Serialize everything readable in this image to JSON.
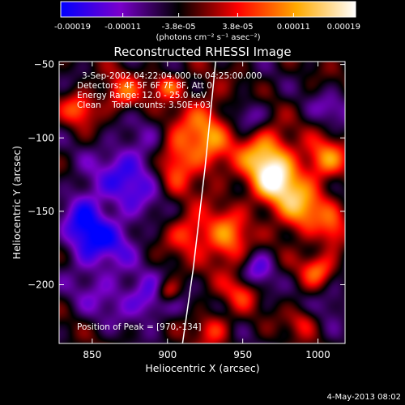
{
  "chart_data": {
    "type": "heatmap",
    "title": "Reconstructed RHESSI Image",
    "xlabel": "Heliocentric X (arcsec)",
    "ylabel": "Heliocentric Y (arcsec)",
    "xlim": [
      828,
      1018
    ],
    "ylim": [
      -240,
      -48
    ],
    "x_ticks": [
      850,
      900,
      950,
      1000
    ],
    "y_ticks": [
      -50,
      -100,
      -150,
      -200
    ],
    "colorbar": {
      "range": [
        -0.00019,
        0.00019
      ],
      "ticks": [
        "-0.00019",
        "-0.00011",
        "-3.8e-05",
        "3.8e-05",
        "0.00011",
        "0.00019"
      ],
      "units": "(photons cm⁻² s⁻¹ asec⁻²)",
      "colormap": [
        "#0000ff",
        "#7a00cc",
        "#000000",
        "#ff0000",
        "#ffaa00",
        "#ffffff"
      ]
    },
    "annotations": {
      "time_range": "3-Sep-2002 04:22:04.000 to 04:25:00.000",
      "detectors": "Detectors: 4F 5F 6F 7F 8F, Att 0",
      "energy_range": "Energy Range: 12.0 - 25.0 keV",
      "method_counts": "Clean    Total counts: 3.50E+03",
      "peak": "Position of Peak = [970,-134]"
    },
    "limb_curve": [
      [
        932,
        -48
      ],
      [
        925,
        -120
      ],
      [
        917,
        -190
      ],
      [
        910,
        -240
      ]
    ],
    "sources": [
      {
        "x": 842,
        "y": -80,
        "value": 0.00011,
        "sx": 8,
        "sy": 8
      },
      {
        "x": 870,
        "y": -70,
        "value": 0.00011,
        "sx": 9,
        "sy": 9
      },
      {
        "x": 900,
        "y": -65,
        "value": 0.00012,
        "sx": 7,
        "sy": 6
      },
      {
        "x": 925,
        "y": -100,
        "value": 0.00013,
        "sx": 12,
        "sy": 20
      },
      {
        "x": 905,
        "y": -115,
        "value": 0.00011,
        "sx": 8,
        "sy": 14
      },
      {
        "x": 965,
        "y": -110,
        "value": 0.00015,
        "sx": 12,
        "sy": 12
      },
      {
        "x": 972,
        "y": -130,
        "value": 0.00019,
        "sx": 12,
        "sy": 12
      },
      {
        "x": 990,
        "y": -150,
        "value": 0.00014,
        "sx": 12,
        "sy": 12
      },
      {
        "x": 1005,
        "y": -115,
        "value": 0.00013,
        "sx": 10,
        "sy": 10
      },
      {
        "x": 940,
        "y": -170,
        "value": 0.00013,
        "sx": 10,
        "sy": 14
      },
      {
        "x": 915,
        "y": -165,
        "value": 0.00011,
        "sx": 10,
        "sy": 10
      },
      {
        "x": 1000,
        "y": -190,
        "value": 0.00011,
        "sx": 8,
        "sy": 8
      },
      {
        "x": 1010,
        "y": -165,
        "value": 9e-05,
        "sx": 6,
        "sy": 10
      },
      {
        "x": 900,
        "y": -205,
        "value": 0.00013,
        "sx": 6,
        "sy": 6
      },
      {
        "x": 950,
        "y": -205,
        "value": 9e-05,
        "sx": 8,
        "sy": 8
      },
      {
        "x": 930,
        "y": -230,
        "value": 9e-05,
        "sx": 8,
        "sy": 8
      },
      {
        "x": 990,
        "y": -225,
        "value": 7e-05,
        "sx": 7,
        "sy": 7
      },
      {
        "x": 860,
        "y": -205,
        "value": -6e-05,
        "sx": 15,
        "sy": 14
      },
      {
        "x": 845,
        "y": -160,
        "value": -0.00013,
        "sx": 10,
        "sy": 20
      },
      {
        "x": 875,
        "y": -125,
        "value": -0.00011,
        "sx": 15,
        "sy": 20
      },
      {
        "x": 890,
        "y": -210,
        "value": -0.00011,
        "sx": 12,
        "sy": 10
      },
      {
        "x": 960,
        "y": -190,
        "value": -9e-05,
        "sx": 8,
        "sy": 10
      },
      {
        "x": 955,
        "y": -85,
        "value": -7e-05,
        "sx": 8,
        "sy": 8
      },
      {
        "x": 865,
        "y": -170,
        "value": -8e-05,
        "sx": 12,
        "sy": 12
      },
      {
        "x": 1010,
        "y": -80,
        "value": -6e-05,
        "sx": 10,
        "sy": 8
      },
      {
        "x": 1010,
        "y": -210,
        "value": -6e-05,
        "sx": 8,
        "sy": 10
      }
    ],
    "background_value": -4e-05
  },
  "footer": {
    "date": "4-May-2013 08:02"
  }
}
